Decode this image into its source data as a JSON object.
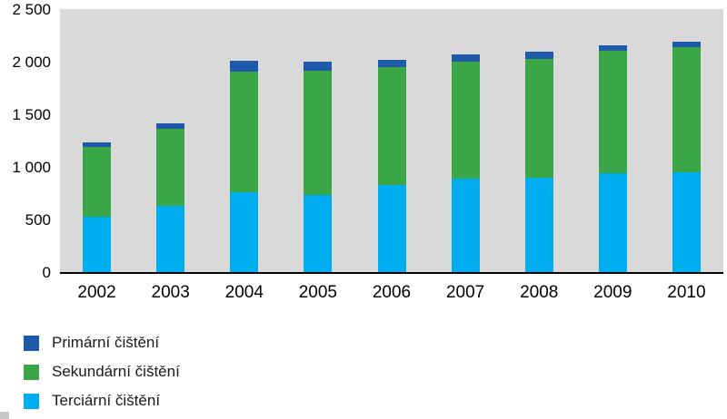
{
  "chart_data": {
    "type": "bar",
    "stacked": true,
    "title": "",
    "xlabel": "",
    "ylabel": "",
    "categories": [
      "2002",
      "2003",
      "2004",
      "2005",
      "2006",
      "2007",
      "2008",
      "2009",
      "2010"
    ],
    "series": [
      {
        "name": "Primární čištění",
        "color": "#1e5aa9",
        "values": [
          40,
          50,
          100,
          90,
          70,
          70,
          70,
          55,
          50
        ]
      },
      {
        "name": "Sekundární čištění",
        "color": "#3aa648",
        "values": [
          660,
          730,
          1150,
          1180,
          1120,
          1110,
          1130,
          1160,
          1190
        ]
      },
      {
        "name": "Terciární čištění",
        "color": "#00aeef",
        "values": [
          530,
          630,
          760,
          730,
          830,
          890,
          900,
          940,
          950
        ]
      }
    ],
    "stack_order_bottom_to_top": [
      "Terciární čištění",
      "Sekundární čištění",
      "Primární čištění"
    ],
    "ylim": [
      0,
      2500
    ],
    "ytick_values": [
      0,
      500,
      1000,
      1500,
      2000,
      2500
    ],
    "ytick_labels": [
      "0",
      "500",
      "1 000",
      "1 500",
      "2 000",
      "2 500"
    ],
    "grid": false,
    "legend_position": "bottom-left",
    "plot_background": "#d9d9d9",
    "axis_color": "#000000"
  },
  "legend": {
    "items": [
      {
        "label": "Primární čištění",
        "color": "#1e5aa9"
      },
      {
        "label": "Sekundární čištění",
        "color": "#3aa648"
      },
      {
        "label": "Terciární čištění",
        "color": "#00aeef"
      }
    ]
  }
}
